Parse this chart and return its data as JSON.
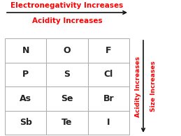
{
  "title1": "Electronegativity Increases",
  "title2": "Acidity Increases",
  "right_label1": "Acidity Increases",
  "right_label2": "Size Increases",
  "table": [
    [
      "N",
      "O",
      "F"
    ],
    [
      "P",
      "S",
      "Cl"
    ],
    [
      "As",
      "Se",
      "Br"
    ],
    [
      "Sb",
      "Te",
      "I"
    ]
  ],
  "red_color": "#FF0000",
  "grid_color": "#aaaaaa",
  "text_color": "#222222",
  "bg_color": "#FFFFFF",
  "cell_text_fontsize": 9,
  "arrow_color": "#111111"
}
